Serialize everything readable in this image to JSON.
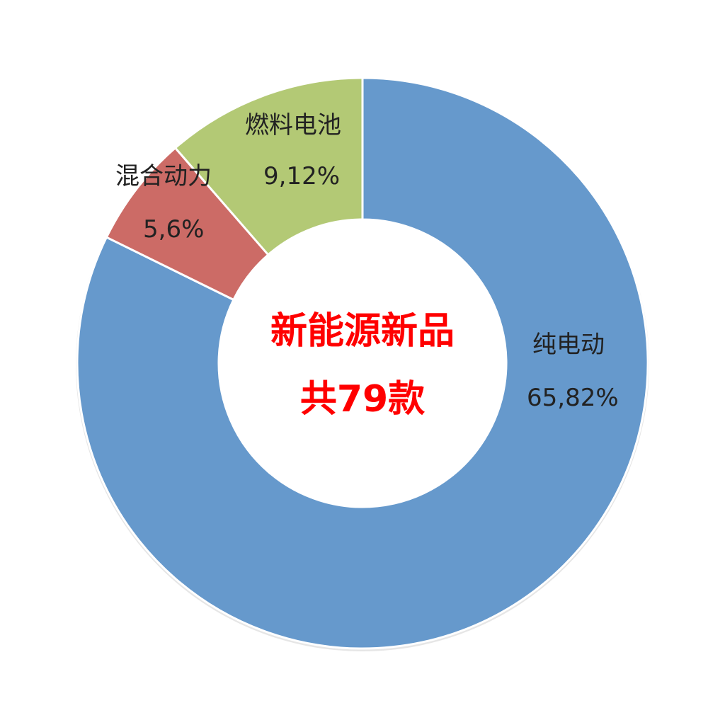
{
  "chart_data": {
    "type": "pie",
    "donut": true,
    "start_angle_deg": 0,
    "direction": "clockwise",
    "center_text": {
      "line1": "新能源新品",
      "line2": "共79款"
    },
    "slices": [
      {
        "name": "纯电动",
        "label": "纯电动",
        "value_label": "65,82%",
        "count": 65,
        "percent": 82,
        "color": "#6699cc"
      },
      {
        "name": "混合动力",
        "label": "混合动力",
        "value_label": "5,6%",
        "count": 5,
        "percent": 6,
        "color": "#cc6b66"
      },
      {
        "name": "燃料电池",
        "label": "燃料电池",
        "value_label": "9,12%",
        "count": 9,
        "percent": 12,
        "color": "#b3c975"
      }
    ]
  }
}
